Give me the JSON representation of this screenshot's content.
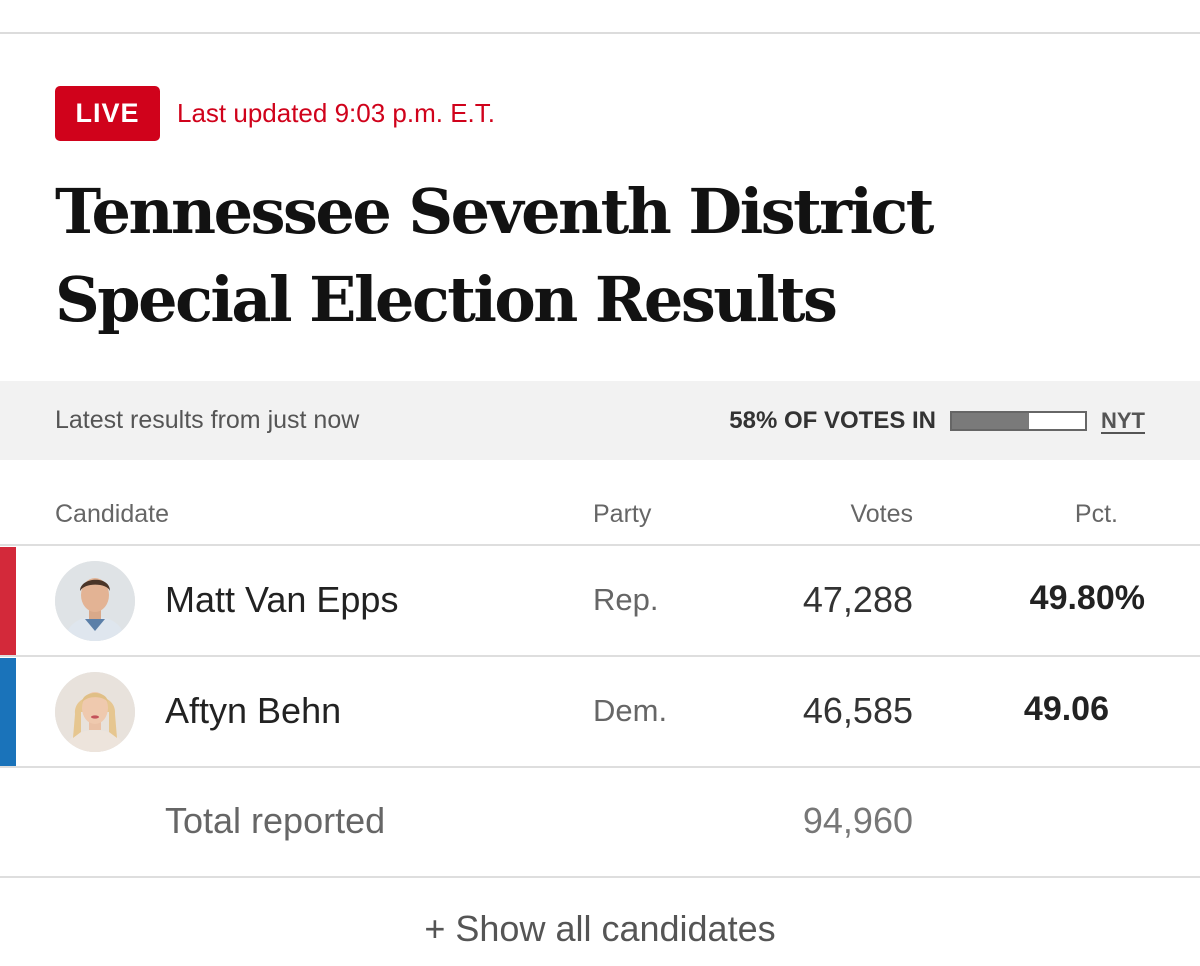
{
  "header": {
    "live_label": "LIVE",
    "updated_text": "Last updated 9:03 p.m. E.T.",
    "title": "Tennessee Seventh District Special Election Results"
  },
  "status": {
    "latest_text": "Latest results from just now",
    "votes_in_text": "58% OF VOTES IN",
    "votes_in_fraction": 0.58,
    "source_label": "NYT"
  },
  "table": {
    "columns": {
      "candidate": "Candidate",
      "party": "Party",
      "votes": "Votes",
      "pct": "Pct."
    },
    "rows": [
      {
        "name": "Matt Van Epps",
        "party": "Rep.",
        "votes": "47,288",
        "pct": "49.80%",
        "party_color": "#d3293a"
      },
      {
        "name": "Aftyn Behn",
        "party": "Dem.",
        "votes": "46,585",
        "pct": "49.06",
        "party_color": "#1a73ba"
      }
    ],
    "total": {
      "label": "Total reported",
      "votes": "94,960"
    }
  },
  "footer": {
    "show_all_label": "+ Show all candidates"
  },
  "colors": {
    "accent_red": "#d0021b",
    "republican": "#d3293a",
    "democrat": "#1a73ba"
  }
}
